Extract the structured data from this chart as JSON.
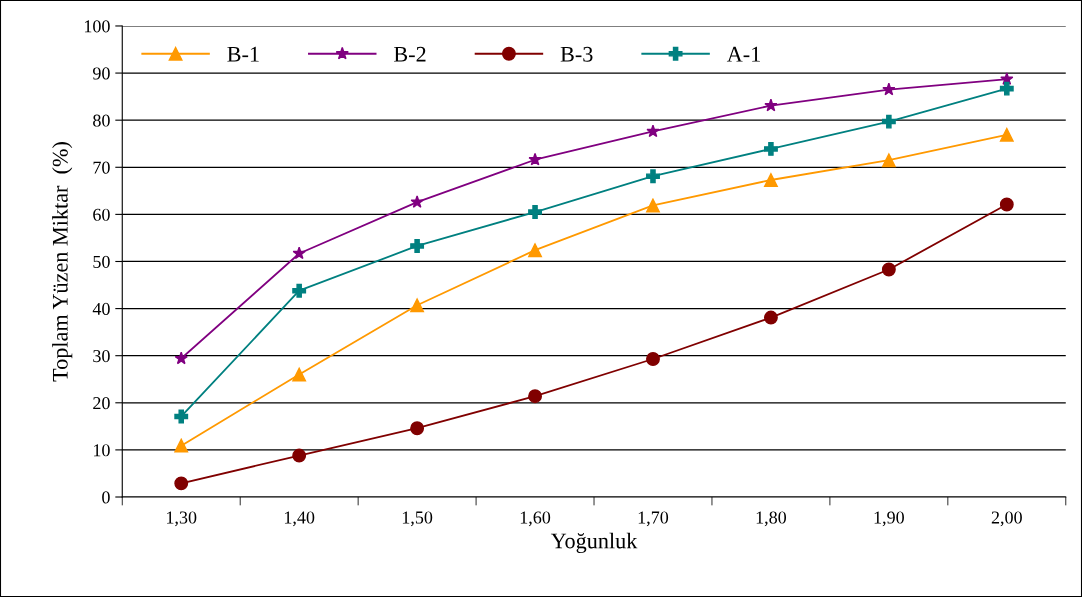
{
  "chart_data": {
    "type": "line",
    "xlabel": "Yoğunluk",
    "ylabel": "Toplam Yüzen Miktar  (%)",
    "categories": [
      "1,30",
      "1,40",
      "1,50",
      "1,60",
      "1,70",
      "1,80",
      "1,90",
      "2,00"
    ],
    "series": [
      {
        "name": "B-1",
        "color": "#ff9900",
        "marker": "triangle",
        "values": [
          10.9,
          26.0,
          40.7,
          52.4,
          61.9,
          67.3,
          71.5,
          76.9
        ]
      },
      {
        "name": "B-2",
        "color": "#800080",
        "marker": "star",
        "values": [
          29.4,
          51.7,
          62.6,
          71.6,
          77.6,
          83.1,
          86.5,
          88.7
        ]
      },
      {
        "name": "B-3",
        "color": "#800000",
        "marker": "circle",
        "values": [
          2.9,
          8.8,
          14.6,
          21.4,
          29.3,
          38.1,
          48.3,
          62.1
        ]
      },
      {
        "name": "A-1",
        "color": "#008080",
        "marker": "cross",
        "values": [
          17.1,
          43.8,
          53.3,
          60.5,
          68.1,
          73.9,
          79.7,
          86.7
        ]
      }
    ],
    "ylim": [
      0,
      100
    ],
    "yticks": [
      0,
      10,
      20,
      30,
      40,
      50,
      60,
      70,
      80,
      90,
      100
    ],
    "grid": "y",
    "legend": "top left",
    "line_style": "solid"
  }
}
